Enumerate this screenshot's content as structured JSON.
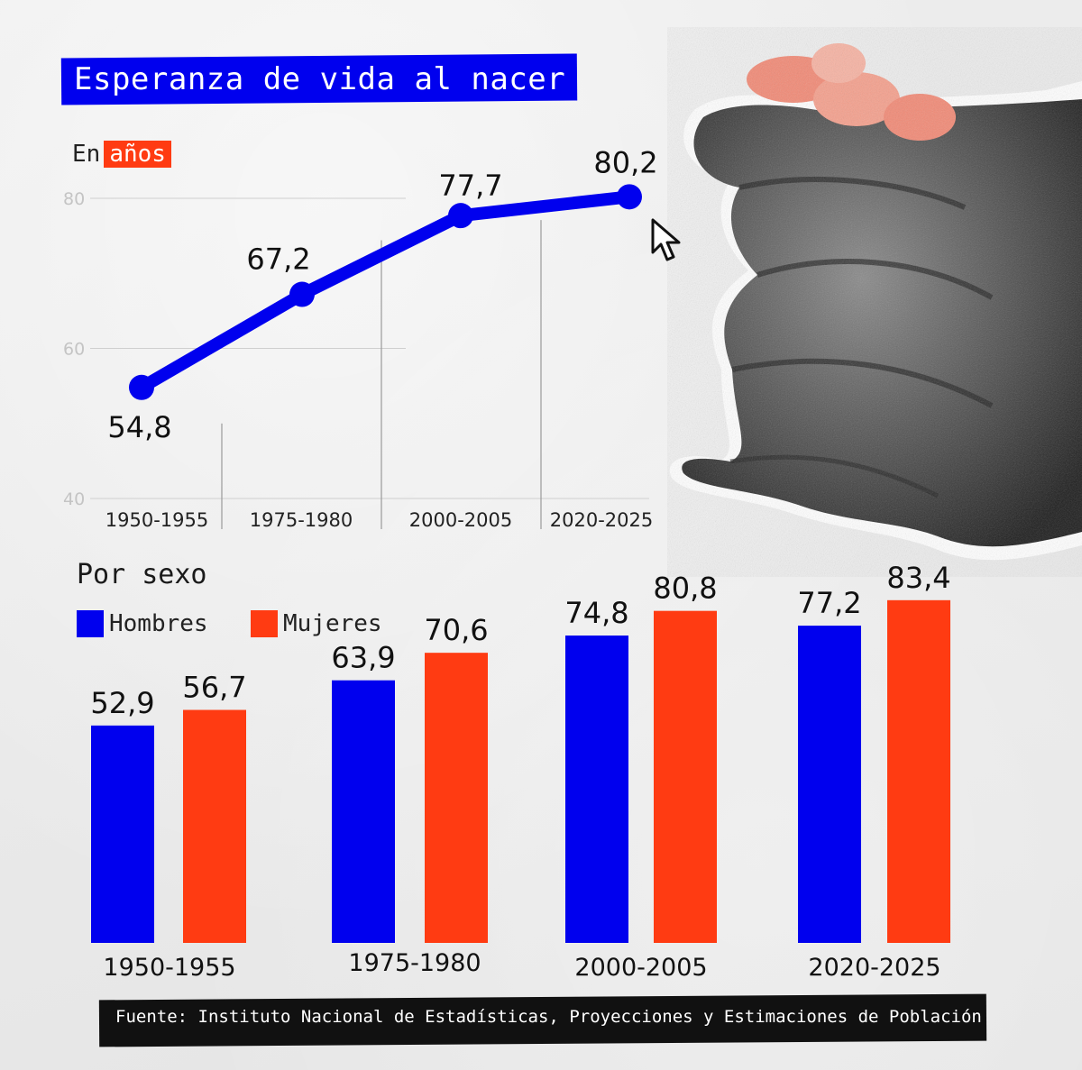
{
  "title": "Esperanza de vida al nacer",
  "subtitle": {
    "prefix": "En",
    "highlight": "años"
  },
  "colors": {
    "blue": "#0000ee",
    "red": "#ff3b12"
  },
  "chart_data": [
    {
      "type": "line",
      "title": "Esperanza de vida al nacer",
      "ylabel": "En años",
      "ylim": [
        40,
        80
      ],
      "yticks": [
        "80",
        "60",
        "40"
      ],
      "categories": [
        "1950-1955",
        "1975-1980",
        "2000-2005",
        "2020-2025"
      ],
      "values": [
        54.8,
        67.2,
        77.7,
        80.2
      ],
      "labels": [
        "54,8",
        "67,2",
        "77,7",
        "80,2"
      ]
    },
    {
      "type": "bar",
      "title": "Por sexo",
      "categories": [
        "1950-1955",
        "1975-1980",
        "2000-2005",
        "2020-2025"
      ],
      "series": [
        {
          "name": "Hombres",
          "values": [
            52.9,
            63.9,
            74.8,
            77.2
          ],
          "labels": [
            "52,9",
            "63,9",
            "74,8",
            "77,2"
          ]
        },
        {
          "name": "Mujeres",
          "values": [
            56.7,
            70.6,
            80.8,
            83.4
          ],
          "labels": [
            "56,7",
            "70,6",
            "80,8",
            "83,4"
          ]
        }
      ]
    }
  ],
  "source": "Fuente: Instituto Nacional de Estadísticas, Proyecciones y Estimaciones de Población",
  "icons": {
    "cursor": "cursor-arrow-icon",
    "hand": "hand-illustration"
  }
}
